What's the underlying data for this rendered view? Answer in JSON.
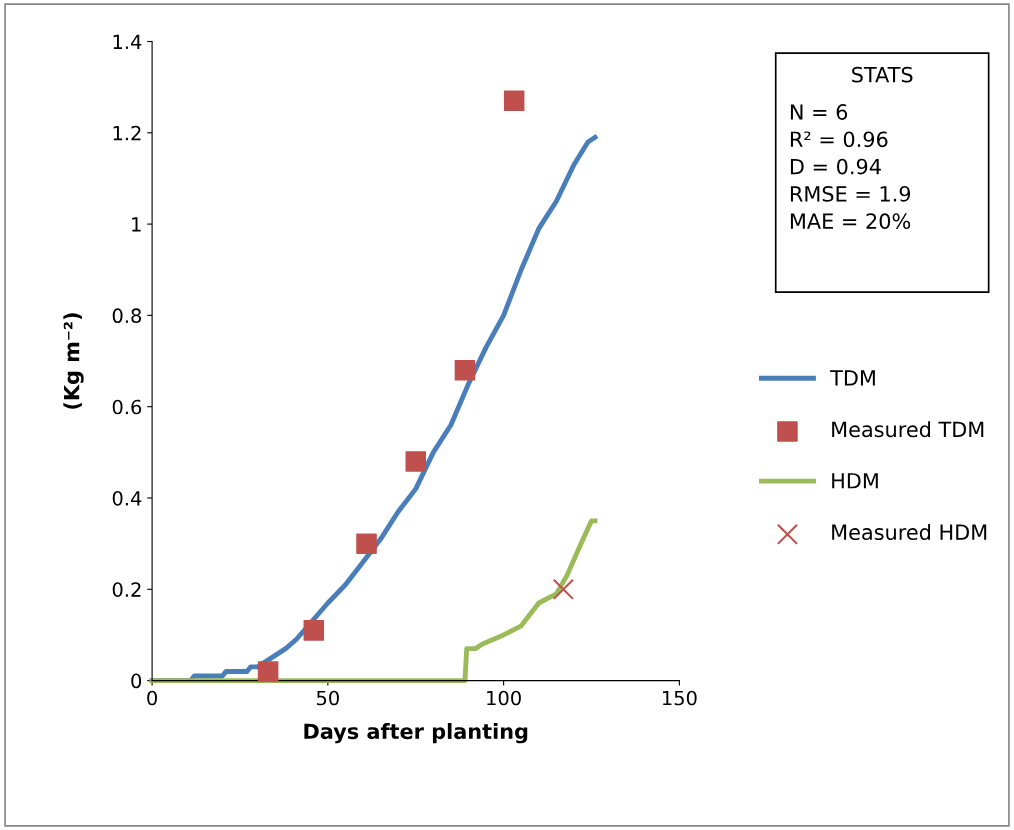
{
  "chart_data": {
    "type": "line",
    "xlabel": "Days after planting",
    "ylabel": "(Kg m⁻²)",
    "xlim": [
      0,
      150
    ],
    "xticks": [
      0,
      50,
      100,
      150
    ],
    "ylim": [
      0,
      1.4
    ],
    "yticks": [
      0,
      0.2,
      0.4,
      0.6,
      0.8,
      1,
      1.2,
      1.4
    ],
    "grid": false,
    "legend": "right",
    "annotations": [
      "STATS",
      "N = 6",
      "R² = 0.96",
      "D = 0.94",
      "RMSE = 1.9",
      "MAE = 20%"
    ],
    "series": [
      {
        "name": "TDM",
        "color": "#4a7ebb",
        "marker": "none",
        "x": [
          0,
          11,
          12,
          20,
          21,
          27,
          28,
          30,
          38,
          41,
          50,
          55,
          60,
          65,
          70,
          75,
          80,
          85,
          90,
          95,
          100,
          105,
          110,
          115,
          120,
          124,
          126
        ],
        "values": [
          0,
          0,
          0.01,
          0.01,
          0.02,
          0.02,
          0.03,
          0.03,
          0.07,
          0.09,
          0.17,
          0.21,
          0.26,
          0.31,
          0.37,
          0.42,
          0.5,
          0.56,
          0.65,
          0.73,
          0.8,
          0.9,
          0.99,
          1.05,
          1.13,
          1.18,
          1.19
        ]
      },
      {
        "name": "Measured TDM",
        "type": "scatter",
        "color": "#c0504d",
        "marker": "square",
        "x": [
          33,
          46,
          61,
          75,
          89,
          103
        ],
        "values": [
          0.02,
          0.11,
          0.3,
          0.48,
          0.68,
          1.27
        ]
      },
      {
        "name": "HDM",
        "color": "#9bbb59",
        "marker": "none",
        "x": [
          0,
          89,
          89.5,
          92,
          94,
          100,
          105,
          110,
          115,
          118,
          122,
          125,
          126
        ],
        "values": [
          0,
          0,
          0.07,
          0.07,
          0.08,
          0.1,
          0.12,
          0.17,
          0.19,
          0.23,
          0.3,
          0.35,
          0.35
        ]
      },
      {
        "name": "Measured HDM",
        "type": "scatter",
        "color": "#c0504d",
        "marker": "cross",
        "x": [
          117
        ],
        "values": [
          0.2
        ]
      }
    ]
  }
}
